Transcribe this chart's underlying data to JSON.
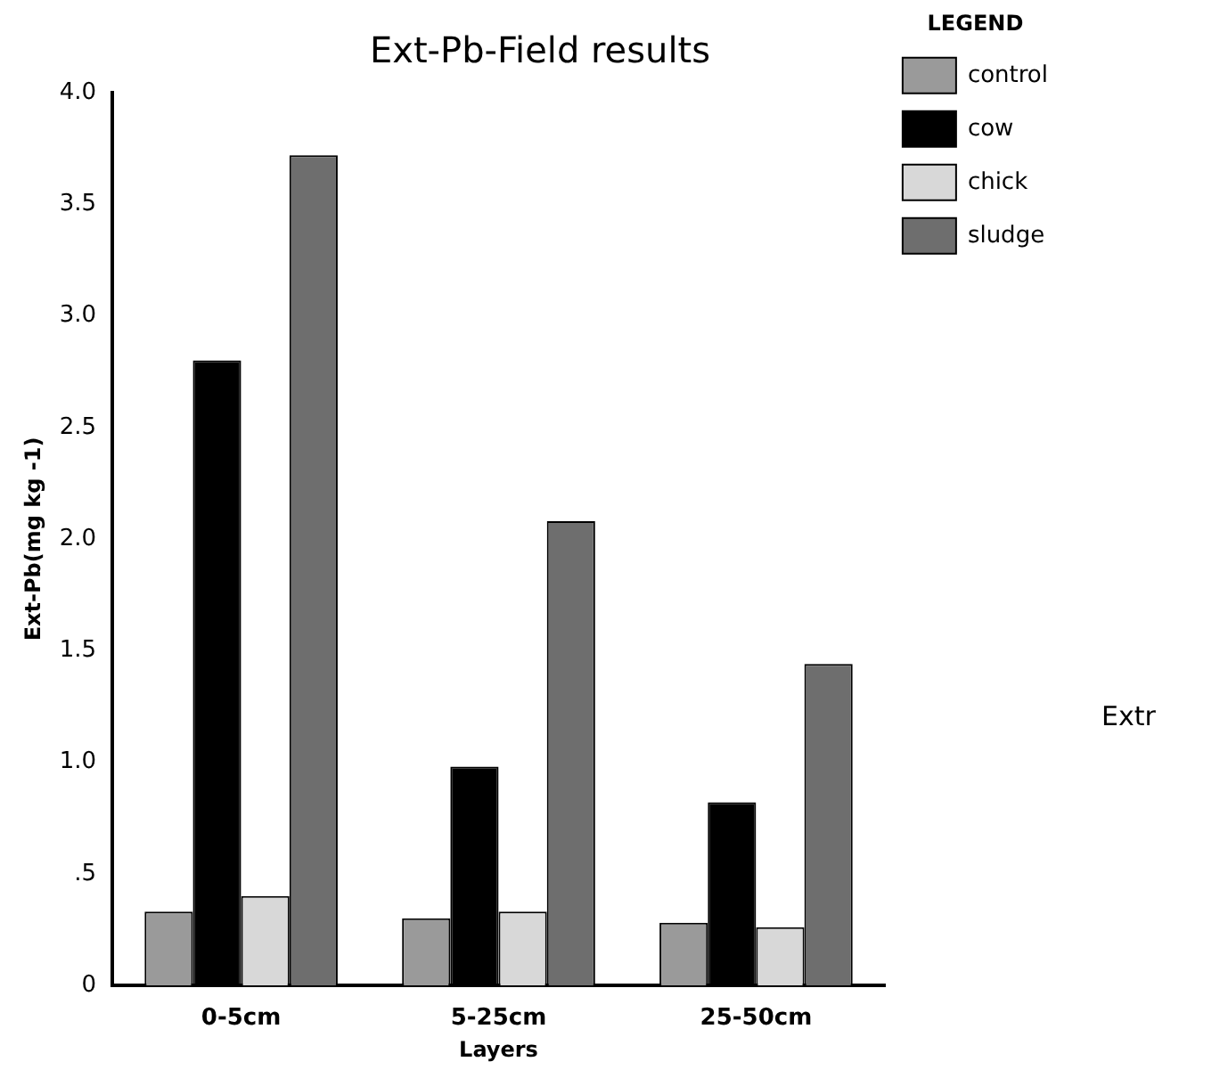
{
  "chart_data": {
    "type": "bar",
    "title": "Ext-Pb-Field results",
    "xlabel": "Layers",
    "ylabel": "Ext-Pb(mg kg -1)",
    "legend_title": "LEGEND",
    "legend": "right",
    "grid": false,
    "categories": [
      "0-5cm",
      "5-25cm",
      "25-50cm"
    ],
    "series": [
      {
        "name": "control",
        "color": "#9a9a9a",
        "values": [
          0.33,
          0.3,
          0.28
        ]
      },
      {
        "name": "cow",
        "color": "#000000",
        "values": [
          2.8,
          0.98,
          0.82
        ]
      },
      {
        "name": "chick",
        "color": "#d8d8d8",
        "values": [
          0.4,
          0.33,
          0.26
        ]
      },
      {
        "name": "sludge",
        "color": "#6e6e6e",
        "values": [
          3.72,
          2.08,
          1.44
        ]
      }
    ],
    "ylim": [
      0,
      4
    ],
    "yticks": [
      {
        "value": 0,
        "label": "0"
      },
      {
        "value": 0.5,
        "label": ".5"
      },
      {
        "value": 1,
        "label": "1.0"
      },
      {
        "value": 1.5,
        "label": "1.5"
      },
      {
        "value": 2,
        "label": "2.0"
      },
      {
        "value": 2.5,
        "label": "2.5"
      },
      {
        "value": 3,
        "label": "3.0"
      },
      {
        "value": 3.5,
        "label": "3.5"
      },
      {
        "value": 4,
        "label": "4.0"
      }
    ],
    "annotations": [
      "Extr"
    ]
  }
}
